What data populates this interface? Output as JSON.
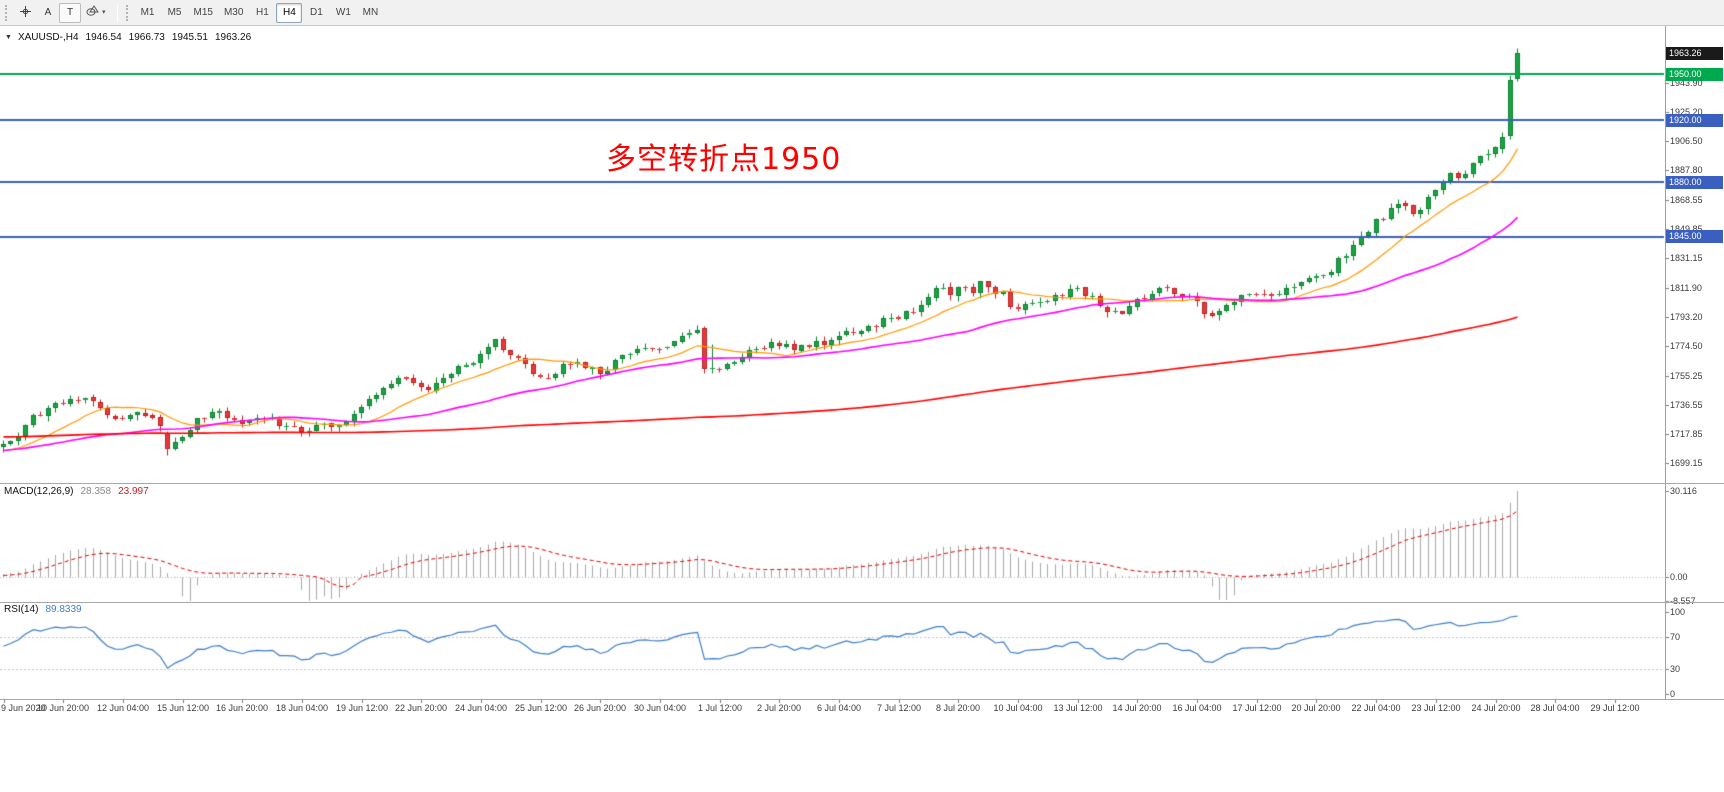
{
  "toolbar": {
    "tools": [
      {
        "name": "crosshair"
      },
      {
        "label": "A"
      },
      {
        "label": "T"
      },
      {
        "name": "shapes"
      }
    ],
    "timeframes": [
      "M1",
      "M5",
      "M15",
      "M30",
      "H1",
      "H4",
      "D1",
      "W1",
      "MN"
    ],
    "active_timeframe": "H4"
  },
  "chart": {
    "header": {
      "symbol": "XAUUSD-,H4",
      "open": "1946.54",
      "high": "1966.73",
      "low": "1945.51",
      "close": "1963.26"
    },
    "annotation": {
      "text": "多空转折点1950",
      "color": "#ff0000"
    },
    "current_price_tag": {
      "label": "1963.26",
      "value": 1963.26,
      "bg": "#1a1a1a"
    },
    "price_lines": [
      {
        "value": 1950.0,
        "label": "1950.00",
        "color": "#00a84e"
      },
      {
        "value": 1920.0,
        "label": "1920.00",
        "color": "#3a5fc0"
      },
      {
        "value": 1880.0,
        "label": "1880.00",
        "color": "#3a5fc0"
      },
      {
        "value": 1845.0,
        "label": "1845.00",
        "color": "#3a5fc0"
      }
    ],
    "price_axis_labels": [
      "1943.90",
      "1925.20",
      "1906.50",
      "1887.80",
      "1868.55",
      "1849.85",
      "1831.15",
      "1811.90",
      "1793.20",
      "1774.50",
      "1755.25",
      "1736.55",
      "1717.85",
      "1699.15"
    ],
    "time_axis_labels": [
      {
        "i": 0,
        "t": "9 Jun 2020"
      },
      {
        "i": 8,
        "t": "10 Jun 20:00"
      },
      {
        "i": 16,
        "t": "12 Jun 04:00"
      },
      {
        "i": 24,
        "t": "15 Jun 12:00"
      },
      {
        "i": 32,
        "t": "16 Jun 20:00"
      },
      {
        "i": 40,
        "t": "18 Jun 04:00"
      },
      {
        "i": 48,
        "t": "19 Jun 12:00"
      },
      {
        "i": 56,
        "t": "22 Jun 20:00"
      },
      {
        "i": 64,
        "t": "24 Jun 04:00"
      },
      {
        "i": 72,
        "t": "25 Jun 12:00"
      },
      {
        "i": 80,
        "t": "26 Jun 20:00"
      },
      {
        "i": 88,
        "t": "30 Jun 04:00"
      },
      {
        "i": 96,
        "t": "1 Jul 12:00"
      },
      {
        "i": 104,
        "t": "2 Jul 20:00"
      },
      {
        "i": 112,
        "t": "6 Jul 04:00"
      },
      {
        "i": 120,
        "t": "7 Jul 12:00"
      },
      {
        "i": 128,
        "t": "8 Jul 20:00"
      },
      {
        "i": 136,
        "t": "10 Jul 04:00"
      },
      {
        "i": 144,
        "t": "13 Jul 12:00"
      },
      {
        "i": 152,
        "t": "14 Jul 20:00"
      },
      {
        "i": 160,
        "t": "16 Jul 04:00"
      },
      {
        "i": 168,
        "t": "17 Jul 12:00"
      },
      {
        "i": 176,
        "t": "20 Jul 20:00"
      },
      {
        "i": 184,
        "t": "22 Jul 04:00"
      },
      {
        "i": 192,
        "t": "23 Jul 12:00"
      },
      {
        "i": 200,
        "t": "24 Jul 20:00"
      },
      {
        "i": 208,
        "t": "28 Jul 04:00"
      },
      {
        "i": 216,
        "t": "29 Jul 12:00"
      }
    ]
  },
  "indicators": {
    "macd": {
      "label": "MACD(12,26,9)",
      "main_value": "28.358",
      "signal_value": "23.997",
      "axis_labels": [
        "30.116",
        "0.00",
        "-8.557"
      ]
    },
    "rsi": {
      "label": "RSI(14)",
      "value": "89.8339",
      "axis_labels": [
        "100",
        "70",
        "30",
        "0"
      ]
    }
  },
  "chart_data": {
    "type": "candlestick",
    "symbol": "XAUUSD",
    "timeframe": "H4",
    "visible_candles": 204,
    "y_axis_range": [
      1686,
      1981
    ],
    "seed": 11,
    "price_anchors": [
      [
        -180,
        1698
      ],
      [
        -150,
        1716
      ],
      [
        -120,
        1727
      ],
      [
        -100,
        1719
      ],
      [
        -80,
        1736
      ],
      [
        -60,
        1722
      ],
      [
        -50,
        1701
      ],
      [
        -40,
        1689
      ],
      [
        -30,
        1706
      ],
      [
        -20,
        1713
      ],
      [
        -10,
        1703
      ],
      [
        -2,
        1709
      ],
      [
        0,
        1712
      ],
      [
        2,
        1716
      ],
      [
        4,
        1728
      ],
      [
        6,
        1734
      ],
      [
        8,
        1737
      ],
      [
        10,
        1741
      ],
      [
        12,
        1737
      ],
      [
        14,
        1731
      ],
      [
        16,
        1727
      ],
      [
        18,
        1732
      ],
      [
        20,
        1730
      ],
      [
        21,
        1721
      ],
      [
        22,
        1707
      ],
      [
        23,
        1713
      ],
      [
        25,
        1722
      ],
      [
        26,
        1726
      ],
      [
        28,
        1732
      ],
      [
        30,
        1729
      ],
      [
        32,
        1724
      ],
      [
        34,
        1727
      ],
      [
        36,
        1726
      ],
      [
        38,
        1724
      ],
      [
        40,
        1717
      ],
      [
        42,
        1723
      ],
      [
        44,
        1721
      ],
      [
        46,
        1727
      ],
      [
        48,
        1734
      ],
      [
        50,
        1743
      ],
      [
        52,
        1750
      ],
      [
        54,
        1755
      ],
      [
        55,
        1749
      ],
      [
        57,
        1747
      ],
      [
        59,
        1755
      ],
      [
        61,
        1760
      ],
      [
        63,
        1765
      ],
      [
        65,
        1772
      ],
      [
        66,
        1779
      ],
      [
        67,
        1772
      ],
      [
        69,
        1765
      ],
      [
        71,
        1758
      ],
      [
        73,
        1754
      ],
      [
        75,
        1761
      ],
      [
        77,
        1765
      ],
      [
        79,
        1759
      ],
      [
        80,
        1756
      ],
      [
        82,
        1764
      ],
      [
        84,
        1770
      ],
      [
        86,
        1772
      ],
      [
        88,
        1774
      ],
      [
        90,
        1778
      ],
      [
        92,
        1783
      ],
      [
        93,
        1786
      ],
      [
        94,
        1772
      ],
      [
        95,
        1758
      ],
      [
        96,
        1761
      ],
      [
        98,
        1765
      ],
      [
        100,
        1770
      ],
      [
        102,
        1774
      ],
      [
        104,
        1776
      ],
      [
        106,
        1773
      ],
      [
        108,
        1775
      ],
      [
        110,
        1776
      ],
      [
        112,
        1780
      ],
      [
        114,
        1784
      ],
      [
        116,
        1787
      ],
      [
        118,
        1791
      ],
      [
        120,
        1794
      ],
      [
        122,
        1798
      ],
      [
        124,
        1804
      ],
      [
        125,
        1810
      ],
      [
        126,
        1814
      ],
      [
        127,
        1809
      ],
      [
        128,
        1813
      ],
      [
        130,
        1808
      ],
      [
        131,
        1817
      ],
      [
        132,
        1812
      ],
      [
        134,
        1808
      ],
      [
        135,
        1801
      ],
      [
        136,
        1798
      ],
      [
        138,
        1802
      ],
      [
        140,
        1805
      ],
      [
        142,
        1808
      ],
      [
        144,
        1811
      ],
      [
        146,
        1806
      ],
      [
        148,
        1797
      ],
      [
        150,
        1794
      ],
      [
        152,
        1803
      ],
      [
        154,
        1808
      ],
      [
        156,
        1812
      ],
      [
        158,
        1807
      ],
      [
        160,
        1803
      ],
      [
        161,
        1797
      ],
      [
        162,
        1792
      ],
      [
        164,
        1799
      ],
      [
        166,
        1806
      ],
      [
        168,
        1810
      ],
      [
        170,
        1808
      ],
      [
        172,
        1811
      ],
      [
        174,
        1814
      ],
      [
        176,
        1819
      ],
      [
        178,
        1824
      ],
      [
        180,
        1834
      ],
      [
        182,
        1844
      ],
      [
        184,
        1855
      ],
      [
        186,
        1862
      ],
      [
        188,
        1867
      ],
      [
        189,
        1861
      ],
      [
        190,
        1864
      ],
      [
        192,
        1876
      ],
      [
        194,
        1888
      ],
      [
        195,
        1882
      ],
      [
        196,
        1886
      ],
      [
        198,
        1895
      ],
      [
        200,
        1902
      ],
      [
        201,
        1909
      ],
      [
        202,
        1946
      ],
      [
        203,
        1963.26
      ]
    ],
    "candle_overrides": [
      [
        22,
        1718.5,
        1719.6,
        1703.8,
        1707.9
      ],
      [
        94,
        1786.0,
        1787.6,
        1756.8,
        1759.6
      ],
      [
        201,
        1901.9,
        1912.6,
        1899.2,
        1909.3
      ],
      [
        202,
        1909.7,
        1949.6,
        1908.1,
        1946.4
      ],
      [
        203,
        1946.54,
        1966.73,
        1945.51,
        1963.26
      ]
    ],
    "moving_averages": [
      {
        "period": 12,
        "color": "#ff9a00"
      },
      {
        "period": 36,
        "color": "#ff00ff"
      },
      {
        "period": 170,
        "color": "#ff0000"
      }
    ],
    "macd": {
      "fast": 12,
      "slow": 26,
      "signal": 9,
      "axis_max": 30.116,
      "axis_min": -8.557,
      "current_main": 28.358,
      "current_signal": 23.997
    },
    "rsi": {
      "period": 14,
      "current": 89.8339,
      "levels": [
        70,
        30
      ]
    },
    "colors": {
      "up": "#1ca244",
      "up_border": "#0d8231",
      "down": "#e23b3b",
      "down_border": "#bf2222",
      "macd_hist": "#a9a9a9",
      "macd_signal": "#e00000",
      "rsi_line": "#3e7fc9"
    }
  }
}
